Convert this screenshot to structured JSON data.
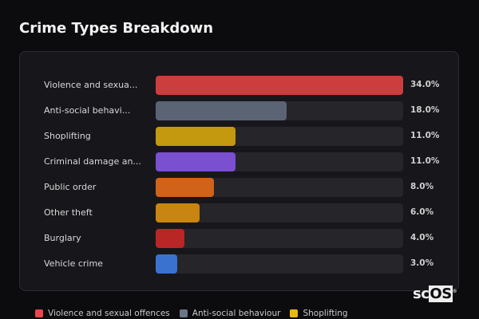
{
  "title": "Crime Types Breakdown",
  "chart_data": {
    "type": "bar",
    "orientation": "horizontal",
    "categories": [
      "Violence and sexua...",
      "Anti-social behavi...",
      "Shoplifting",
      "Criminal damage an...",
      "Public order",
      "Other theft",
      "Burglary",
      "Vehicle crime"
    ],
    "values": [
      34.0,
      18.0,
      11.0,
      11.0,
      8.0,
      6.0,
      4.0,
      3.0
    ],
    "value_labels": [
      "34.0%",
      "18.0%",
      "11.0%",
      "11.0%",
      "8.0%",
      "6.0%",
      "4.0%",
      "3.0%"
    ],
    "colors": [
      "#cc3d3d",
      "#5a6474",
      "#c4980f",
      "#7a4fd0",
      "#d0621a",
      "#c88512",
      "#b82626",
      "#3a72d0"
    ],
    "xlim": [
      0,
      34
    ],
    "unit": "%",
    "legend": [
      {
        "label": "Violence and sexual offences",
        "color": "#e8474b"
      },
      {
        "label": "Anti-social behaviour",
        "color": "#6a7588"
      },
      {
        "label": "Shoplifting",
        "color": "#e8b810"
      }
    ],
    "legend_position": "bottom"
  },
  "logo": {
    "text_a": "sc",
    "text_b": "OS",
    "mark": "®"
  }
}
